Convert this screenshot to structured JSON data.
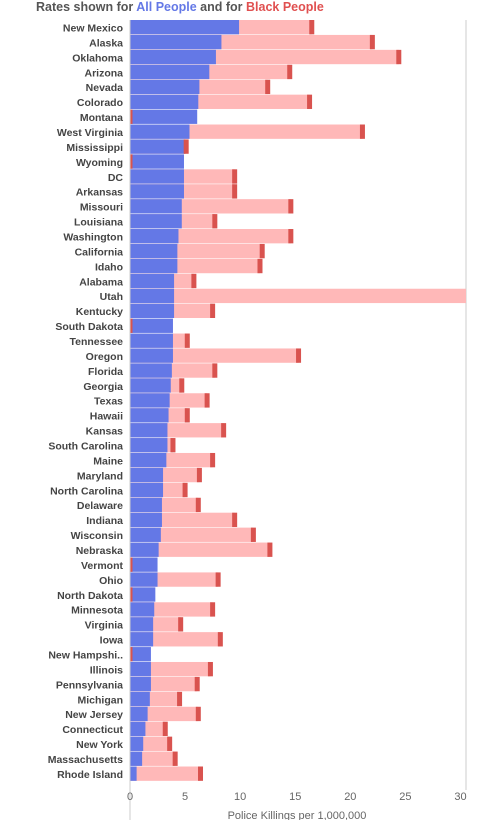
{
  "title": {
    "prefix": "Rates shown for ",
    "all_label": "All People",
    "middle": " and for ",
    "black_label": "Black People"
  },
  "colors": {
    "all": "#6478e6",
    "black_bar": "#ffb8b8",
    "black_marker": "#d9534f",
    "axis": "#cccccc"
  },
  "chart_data": {
    "type": "bar",
    "orientation": "horizontal",
    "xlabel": "Police Killings per 1,000,000",
    "xlim": [
      0,
      30.5
    ],
    "xticks": [
      0,
      5,
      10,
      15,
      20,
      25,
      30
    ],
    "grid": false,
    "categories": [
      "New Mexico",
      "Alaska",
      "Oklahoma",
      "Arizona",
      "Nevada",
      "Colorado",
      "Montana",
      "West Virginia",
      "Mississippi",
      "Wyoming",
      "DC",
      "Arkansas",
      "Missouri",
      "Louisiana",
      "Washington",
      "California",
      "Idaho",
      "Alabama",
      "Utah",
      "Kentucky",
      "South Dakota",
      "Tennessee",
      "Oregon",
      "Florida",
      "Georgia",
      "Texas",
      "Hawaii",
      "Kansas",
      "South Carolina",
      "Maine",
      "Maryland",
      "North Carolina",
      "Delaware",
      "Indiana",
      "Wisconsin",
      "Nebraska",
      "Vermont",
      "Ohio",
      "North Dakota",
      "Minnesota",
      "Virginia",
      "Iowa",
      "New Hampshi..",
      "Illinois",
      "Pennsylvania",
      "Michigan",
      "New Jersey",
      "Connecticut",
      "New York",
      "Massachusetts",
      "Rhode Island"
    ],
    "series": [
      {
        "name": "All People",
        "values": [
          9.9,
          8.3,
          7.8,
          7.2,
          6.3,
          6.2,
          6.1,
          5.4,
          5.0,
          4.9,
          4.9,
          4.9,
          4.7,
          4.7,
          4.4,
          4.3,
          4.3,
          4.0,
          4.0,
          4.0,
          3.9,
          3.9,
          3.9,
          3.8,
          3.7,
          3.6,
          3.5,
          3.4,
          3.4,
          3.3,
          3.0,
          3.0,
          2.9,
          2.9,
          2.8,
          2.6,
          2.5,
          2.5,
          2.3,
          2.2,
          2.1,
          2.1,
          1.9,
          1.9,
          1.9,
          1.8,
          1.6,
          1.4,
          1.2,
          1.1,
          0.6
        ]
      },
      {
        "name": "Black People",
        "values": [
          16.5,
          22.0,
          24.4,
          14.5,
          12.5,
          16.3,
          0.0,
          21.1,
          5.1,
          0.0,
          9.5,
          9.5,
          14.6,
          7.7,
          14.6,
          12.0,
          11.8,
          5.8,
          30.5,
          7.5,
          0.0,
          5.2,
          15.3,
          7.7,
          4.7,
          7.0,
          5.2,
          8.5,
          3.9,
          7.5,
          6.3,
          5.0,
          6.2,
          9.5,
          11.2,
          12.7,
          0.0,
          8.0,
          0.0,
          7.5,
          4.6,
          8.2,
          0.0,
          7.3,
          6.1,
          4.5,
          6.2,
          3.2,
          3.6,
          4.1,
          6.4
        ]
      }
    ]
  }
}
